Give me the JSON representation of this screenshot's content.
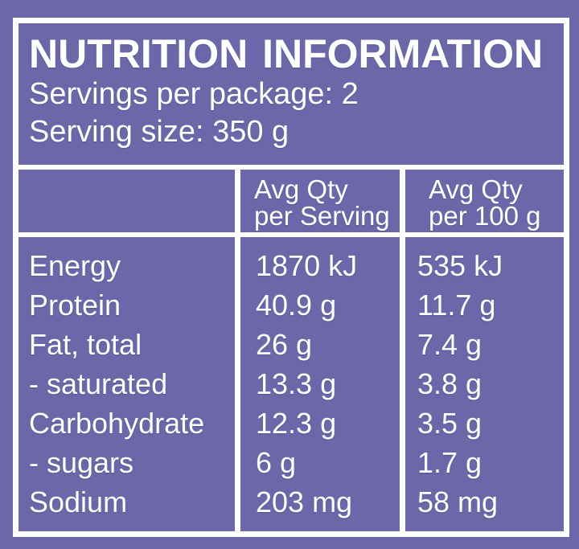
{
  "colors": {
    "panel_background": "#6b67a8",
    "text": "#ffffff",
    "lines": "#ffffff"
  },
  "panel": {
    "title": "NUTRITION INFORMATION",
    "servings_per_package": "Servings per package: 2",
    "serving_size": "Serving size: 350 g"
  },
  "table": {
    "column_headers": {
      "per_serving": {
        "line1": "Avg Qty",
        "line2": "per Serving"
      },
      "per_100g": {
        "line1": "Avg Qty",
        "line2": "per 100 g"
      }
    },
    "rows": [
      {
        "name": "Energy",
        "per_serving": "1870 kJ",
        "per_100g": "535 kJ"
      },
      {
        "name": "Protein",
        "per_serving": "40.9 g",
        "per_100g": "11.7 g"
      },
      {
        "name": "Fat, total",
        "per_serving": "26 g",
        "per_100g": "7.4 g"
      },
      {
        "name": "- saturated",
        "per_serving": "13.3 g",
        "per_100g": "3.8 g"
      },
      {
        "name": "Carbohydrate",
        "per_serving": "12.3 g",
        "per_100g": "3.5 g"
      },
      {
        "name": "- sugars",
        "per_serving": "6 g",
        "per_100g": "1.7 g"
      },
      {
        "name": "Sodium",
        "per_serving": "203 mg",
        "per_100g": "58 mg"
      }
    ]
  }
}
